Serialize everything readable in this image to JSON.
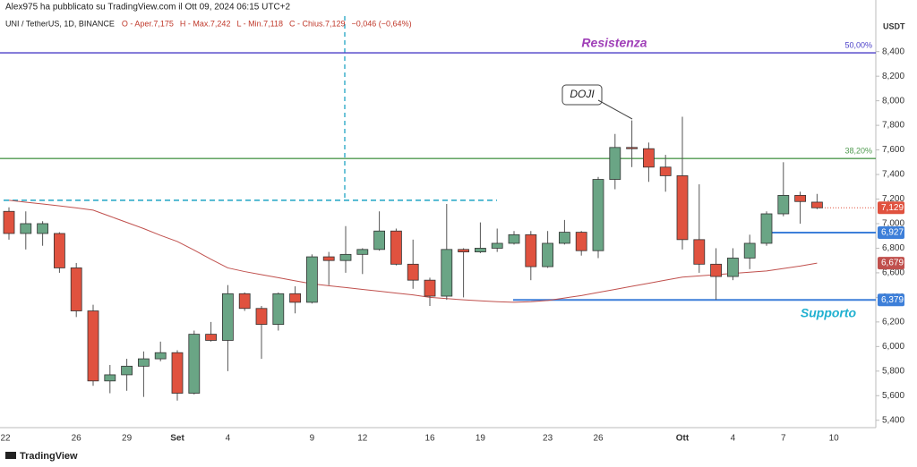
{
  "chart_data": {
    "type": "candlestick",
    "publisher": "Alex975 ha pubblicato su TradingView.com il Ott 09, 2024 06:15 UTC+2",
    "symbol": "UNI / TetherUS, 1D, BINANCE",
    "ohlc_text": [
      "O - Aper.7,175",
      "H - Max.7,242",
      "L - Min.7,118",
      "C - Chius.7,129",
      "−0,046 (−0,64%)"
    ],
    "currency": "USDT",
    "brand": "TradingView",
    "annotations": [
      "Resistenza",
      "Supporto",
      "DOJI"
    ],
    "categories": [
      "22",
      null,
      null,
      null,
      "26",
      null,
      null,
      "29",
      null,
      null,
      "Set",
      null,
      null,
      "4",
      null,
      null,
      null,
      null,
      "9",
      null,
      null,
      "12",
      null,
      null,
      null,
      "16",
      null,
      null,
      "19",
      null,
      null,
      null,
      "23",
      null,
      null,
      "26",
      null,
      null,
      null,
      null,
      "Ott",
      null,
      null,
      "4",
      null,
      null,
      "7",
      null,
      null,
      "10"
    ],
    "open": [
      7100,
      6920,
      6920,
      6920,
      6640,
      6290,
      5720,
      5770,
      5840,
      5900,
      5950,
      5620,
      6100,
      6050,
      6430,
      6310,
      6180,
      6430,
      6360,
      6730,
      6700,
      6750,
      6790,
      6940,
      6670,
      6540,
      6410,
      6790,
      6770,
      6800,
      6840,
      6910,
      6650,
      6840,
      6930,
      6780,
      7360,
      7620,
      7610,
      7460,
      7390,
      6870,
      6670,
      6570,
      6720,
      6840,
      7080,
      7230,
      7175,
      null
    ],
    "high": [
      7133,
      7100,
      7020,
      6930,
      6680,
      6340,
      5850,
      5900,
      5960,
      6040,
      5970,
      6130,
      6200,
      6500,
      6440,
      6330,
      6440,
      6490,
      6750,
      6770,
      6980,
      6800,
      7100,
      6960,
      6870,
      6560,
      7160,
      6800,
      7010,
      6960,
      6940,
      6940,
      6940,
      7030,
      6940,
      7380,
      7730,
      7840,
      7660,
      7560,
      7870,
      7320,
      6800,
      6800,
      6910,
      7100,
      7500,
      7260,
      7242,
      null
    ],
    "low": [
      6870,
      6790,
      6820,
      6600,
      6240,
      5680,
      5620,
      5640,
      5590,
      5880,
      5560,
      5610,
      6040,
      5800,
      6290,
      5900,
      6130,
      6270,
      6350,
      6500,
      6600,
      6590,
      6780,
      6660,
      6470,
      6330,
      6380,
      6400,
      6760,
      6770,
      6830,
      6540,
      6640,
      6830,
      6740,
      6720,
      7280,
      7460,
      7340,
      7260,
      6790,
      6600,
      6380,
      6540,
      6630,
      6820,
      7060,
      7000,
      7118,
      null
    ],
    "close": [
      6920,
      7000,
      7000,
      6640,
      6290,
      5720,
      5770,
      5840,
      5900,
      5950,
      5620,
      6100,
      6050,
      6430,
      6310,
      6180,
      6430,
      6360,
      6730,
      6700,
      6750,
      6790,
      6940,
      6670,
      6540,
      6410,
      6790,
      6770,
      6800,
      6840,
      6910,
      6650,
      6840,
      6930,
      6780,
      7360,
      7620,
      7610,
      7460,
      7390,
      6870,
      6670,
      6570,
      6720,
      6840,
      7080,
      7230,
      7180,
      7129,
      null
    ],
    "up_color": "#6aa585",
    "down_color": "#e0523f",
    "ma": {
      "color": "#c0504d",
      "values": [
        7190,
        7175,
        7160,
        7145,
        7128,
        7110,
        7060,
        7010,
        6960,
        6905,
        6855,
        6785,
        6710,
        6640,
        6610,
        6585,
        6560,
        6535,
        6510,
        6495,
        6480,
        6465,
        6450,
        6435,
        6420,
        6400,
        6390,
        6380,
        6372,
        6365,
        6360,
        6365,
        6375,
        6395,
        6415,
        6440,
        6465,
        6490,
        6515,
        6540,
        6565,
        6575,
        6585,
        6595,
        6605,
        6615,
        6635,
        6655,
        6679,
        null
      ]
    },
    "levels": [
      {
        "value": 8390,
        "label": "50,00%",
        "color": "#4a3fc8"
      },
      {
        "value": 7530,
        "label": "38,20%",
        "color": "#4f9a4f"
      }
    ],
    "dashed_level": {
      "value": 7190,
      "color": "#1fa5c4"
    },
    "price_tags": [
      {
        "value": 7129,
        "label": "7,129",
        "color": "#e0523f"
      },
      {
        "value": 6927,
        "label": "6,927",
        "color": "#3d7fd9"
      },
      {
        "value": 6679,
        "label": "6,679",
        "color": "#c0504d"
      },
      {
        "value": 6379,
        "label": "6,379",
        "color": "#3d7fd9"
      }
    ],
    "ylim": [
      5340,
      8820
    ],
    "yticks": [
      {
        "value": 5400,
        "label": "5,400"
      },
      {
        "value": 5600,
        "label": "5,600"
      },
      {
        "value": 5800,
        "label": "5,800"
      },
      {
        "value": 6000,
        "label": "6,000"
      },
      {
        "value": 6200,
        "label": "6,200"
      },
      {
        "value": 6400,
        "label": "6,400"
      },
      {
        "value": 6600,
        "label": "6,600"
      },
      {
        "value": 6800,
        "label": "6,800"
      },
      {
        "value": 7000,
        "label": "7,000"
      },
      {
        "value": 7200,
        "label": "7,200"
      },
      {
        "value": 7400,
        "label": "7,400"
      },
      {
        "value": 7600,
        "label": "7,600"
      },
      {
        "value": 7800,
        "label": "7,800"
      },
      {
        "value": 8000,
        "label": "8,000"
      },
      {
        "value": 8200,
        "label": "8,200"
      },
      {
        "value": 8400,
        "label": "8,400"
      }
    ]
  }
}
